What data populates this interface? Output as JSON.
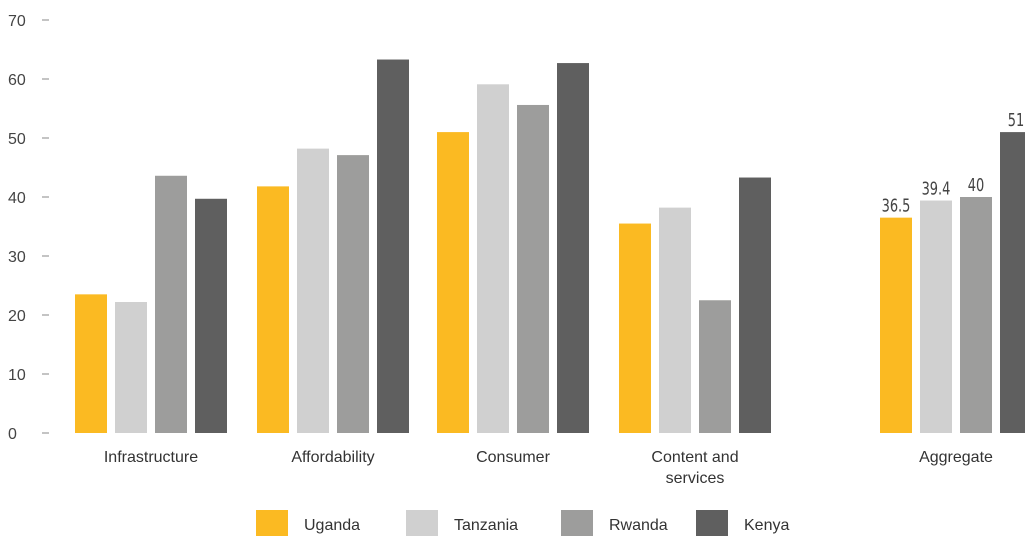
{
  "chart_data": {
    "type": "bar",
    "categories": [
      "Infrastructure",
      "Affordability",
      "Consumer",
      "Content and services",
      "Aggregate"
    ],
    "category_lines": [
      [
        "Infrastructure"
      ],
      [
        "Affordability"
      ],
      [
        "Consumer"
      ],
      [
        "Content and",
        "services"
      ],
      [
        "Aggregate"
      ]
    ],
    "series": [
      {
        "name": "Uganda",
        "color": "#FBBA22",
        "values": [
          23.5,
          41.8,
          51.0,
          35.5,
          36.5
        ]
      },
      {
        "name": "Tanzania",
        "color": "#D0D0D0",
        "values": [
          22.2,
          48.2,
          59.1,
          38.2,
          39.4
        ]
      },
      {
        "name": "Rwanda",
        "color": "#9D9D9C",
        "values": [
          43.6,
          47.1,
          55.6,
          22.5,
          40
        ]
      },
      {
        "name": "Kenya",
        "color": "#5F5F5F",
        "values": [
          39.7,
          63.3,
          62.7,
          43.3,
          51
        ]
      }
    ],
    "data_labels": {
      "category": "Aggregate",
      "labels": [
        "36.5",
        "39.4",
        "40",
        "51"
      ]
    },
    "y_ticks": [
      "0",
      "10",
      "20",
      "30",
      "40",
      "50",
      "60",
      "70"
    ],
    "ylim": [
      0,
      70
    ],
    "legend_position": "bottom-center",
    "grid": false
  }
}
